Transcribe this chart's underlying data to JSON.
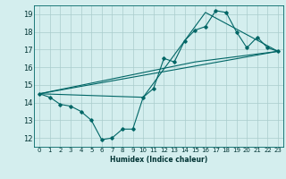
{
  "xlabel": "Humidex (Indice chaleur)",
  "background_color": "#d4eeee",
  "grid_color": "#aacccc",
  "line_color": "#006666",
  "xlim": [
    -0.5,
    23.5
  ],
  "ylim": [
    11.5,
    19.5
  ],
  "yticks": [
    12,
    13,
    14,
    15,
    16,
    17,
    18,
    19
  ],
  "xticks": [
    0,
    1,
    2,
    3,
    4,
    5,
    6,
    7,
    8,
    9,
    10,
    11,
    12,
    13,
    14,
    15,
    16,
    17,
    18,
    19,
    20,
    21,
    22,
    23
  ],
  "lines": [
    {
      "x": [
        0,
        1,
        2,
        3,
        4,
        5,
        6,
        7,
        8,
        9,
        10,
        11,
        12,
        13,
        14,
        15,
        16,
        17,
        18,
        19,
        20,
        21,
        22,
        23
      ],
      "y": [
        14.5,
        14.3,
        13.9,
        13.8,
        13.5,
        13.0,
        11.9,
        12.0,
        12.5,
        12.5,
        14.3,
        14.8,
        16.5,
        16.3,
        17.5,
        18.1,
        18.3,
        19.2,
        19.1,
        18.0,
        17.1,
        17.7,
        17.1,
        16.9
      ],
      "markers": true
    },
    {
      "x": [
        0,
        23
      ],
      "y": [
        14.5,
        16.9
      ],
      "markers": false
    },
    {
      "x": [
        0,
        15,
        23
      ],
      "y": [
        14.5,
        16.3,
        16.9
      ],
      "markers": false
    },
    {
      "x": [
        0,
        10,
        16,
        23
      ],
      "y": [
        14.5,
        14.3,
        19.1,
        16.9
      ],
      "markers": false
    }
  ],
  "figsize": [
    3.2,
    2.0
  ],
  "dpi": 100
}
